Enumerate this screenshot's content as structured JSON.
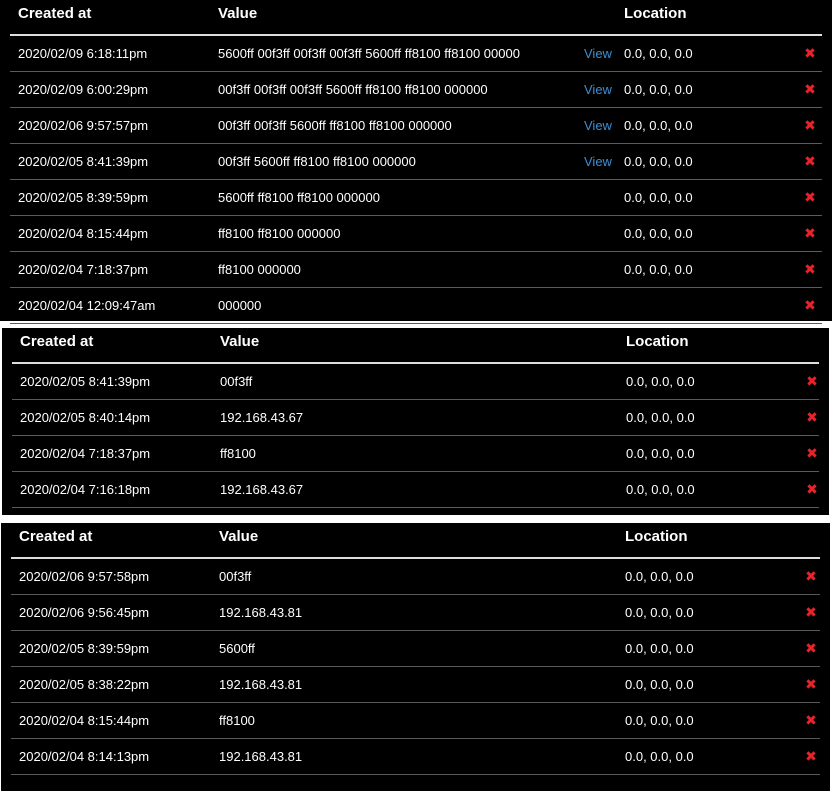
{
  "tables": [
    {
      "headers": {
        "created": "Created at",
        "value": "Value",
        "location": "Location"
      },
      "rows": [
        {
          "created": "2020/02/09 6:18:11pm",
          "value": "5600ff 00f3ff 00f3ff 00f3ff 5600ff ff8100 ff8100 00000",
          "view": "View",
          "location": "0.0, 0.0, 0.0"
        },
        {
          "created": "2020/02/09 6:00:29pm",
          "value": "00f3ff 00f3ff 00f3ff 5600ff ff8100 ff8100 000000",
          "view": "View",
          "location": "0.0, 0.0, 0.0"
        },
        {
          "created": "2020/02/06 9:57:57pm",
          "value": "00f3ff 00f3ff 5600ff ff8100 ff8100 000000",
          "view": "View",
          "location": "0.0, 0.0, 0.0"
        },
        {
          "created": "2020/02/05 8:41:39pm",
          "value": "00f3ff 5600ff ff8100 ff8100 000000",
          "view": "View",
          "location": "0.0, 0.0, 0.0"
        },
        {
          "created": "2020/02/05 8:39:59pm",
          "value": "5600ff ff8100 ff8100 000000",
          "view": "",
          "location": "0.0, 0.0, 0.0"
        },
        {
          "created": "2020/02/04 8:15:44pm",
          "value": "ff8100 ff8100 000000",
          "view": "",
          "location": "0.0, 0.0, 0.0"
        },
        {
          "created": "2020/02/04 7:18:37pm",
          "value": "ff8100 000000",
          "view": "",
          "location": "0.0, 0.0, 0.0"
        },
        {
          "created": "2020/02/04 12:09:47am",
          "value": "000000",
          "view": "",
          "location": ""
        }
      ]
    },
    {
      "headers": {
        "created": "Created at",
        "value": "Value",
        "location": "Location"
      },
      "rows": [
        {
          "created": "2020/02/05 8:41:39pm",
          "value": "00f3ff",
          "view": "",
          "location": "0.0, 0.0, 0.0"
        },
        {
          "created": "2020/02/05 8:40:14pm",
          "value": "192.168.43.67",
          "view": "",
          "location": "0.0, 0.0, 0.0"
        },
        {
          "created": "2020/02/04 7:18:37pm",
          "value": "ff8100",
          "view": "",
          "location": "0.0, 0.0, 0.0"
        },
        {
          "created": "2020/02/04 7:16:18pm",
          "value": "192.168.43.67",
          "view": "",
          "location": "0.0, 0.0, 0.0"
        }
      ]
    },
    {
      "headers": {
        "created": "Created at",
        "value": "Value",
        "location": "Location"
      },
      "rows": [
        {
          "created": "2020/02/06 9:57:58pm",
          "value": "00f3ff",
          "view": "",
          "location": "0.0, 0.0, 0.0"
        },
        {
          "created": "2020/02/06 9:56:45pm",
          "value": "192.168.43.81",
          "view": "",
          "location": "0.0, 0.0, 0.0"
        },
        {
          "created": "2020/02/05 8:39:59pm",
          "value": "5600ff",
          "view": "",
          "location": "0.0, 0.0, 0.0"
        },
        {
          "created": "2020/02/05 8:38:22pm",
          "value": "192.168.43.81",
          "view": "",
          "location": "0.0, 0.0, 0.0"
        },
        {
          "created": "2020/02/04 8:15:44pm",
          "value": "ff8100",
          "view": "",
          "location": "0.0, 0.0, 0.0"
        },
        {
          "created": "2020/02/04 8:14:13pm",
          "value": "192.168.43.81",
          "view": "",
          "location": "0.0, 0.0, 0.0"
        }
      ]
    }
  ],
  "delete_icon": "close-x-icon",
  "colors": {
    "background": "#000000",
    "text": "#ffffff",
    "link": "#3a8fd9",
    "delete": "#e8232a",
    "separator": "#5a5a5a"
  }
}
